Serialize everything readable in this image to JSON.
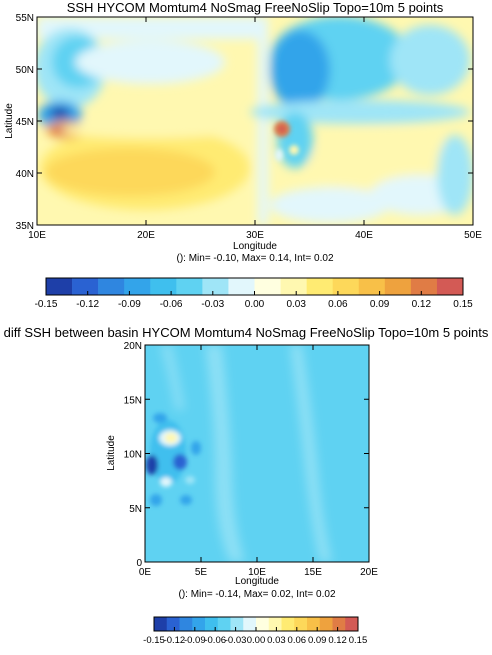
{
  "colorbar_levels": [
    "#1e3fa8",
    "#2a62d2",
    "#2f86e0",
    "#33a4ea",
    "#3fbfee",
    "#5fd2f2",
    "#9fe5f7",
    "#e2f7fc",
    "#ffffe0",
    "#fff8b0",
    "#ffeb72",
    "#fdd85a",
    "#f8c048",
    "#eea23e",
    "#e07c45",
    "#d35a55"
  ],
  "chart_data": [
    {
      "type": "heatmap",
      "title": "SSH HYCOM Momtum4 NoSmag FreeNoSlip Topo=10m 5 points",
      "subtitle": "(): Min= -0.10, Max= 0.14, Int= 0.02",
      "xlabel": "Longitude",
      "ylabel": "Latitude",
      "x_range": [
        10,
        50
      ],
      "y_range": [
        35,
        55
      ],
      "x_ticks": [
        "10E",
        "20E",
        "30E",
        "40E",
        "50E"
      ],
      "y_ticks": [
        "35N",
        "40N",
        "45N",
        "50N",
        "55N"
      ],
      "min": -0.1,
      "max": 0.14,
      "interval": 0.02,
      "colorbar_ticks": [
        "-0.15",
        "-0.12",
        "-0.09",
        "-0.06",
        "-0.03",
        "0.00",
        "0.03",
        "0.06",
        "0.09",
        "0.12",
        "0.15"
      ],
      "colorbar_range": [
        -0.15,
        0.15
      ]
    },
    {
      "type": "heatmap",
      "title": "diff SSH between basin HYCOM Momtum4 NoSmag FreeNoSlip Topo=10m 5 points",
      "subtitle": "(): Min= -0.14, Max= 0.02, Int= 0.02",
      "xlabel": "Longitude",
      "ylabel": "Latitude",
      "x_range": [
        0,
        20
      ],
      "y_range": [
        0,
        20
      ],
      "x_ticks": [
        "0E",
        "5E",
        "10E",
        "15E",
        "20E"
      ],
      "y_ticks": [
        "0",
        "5N",
        "10N",
        "15N",
        "20N"
      ],
      "min": -0.14,
      "max": 0.02,
      "interval": 0.02,
      "colorbar_ticks": [
        "-0.15",
        "-0.12",
        "-0.09",
        "-0.06",
        "-0.03",
        "0.00",
        "0.03",
        "0.06",
        "0.09",
        "0.12",
        "0.15"
      ],
      "colorbar_range": [
        -0.15,
        0.15
      ]
    }
  ]
}
